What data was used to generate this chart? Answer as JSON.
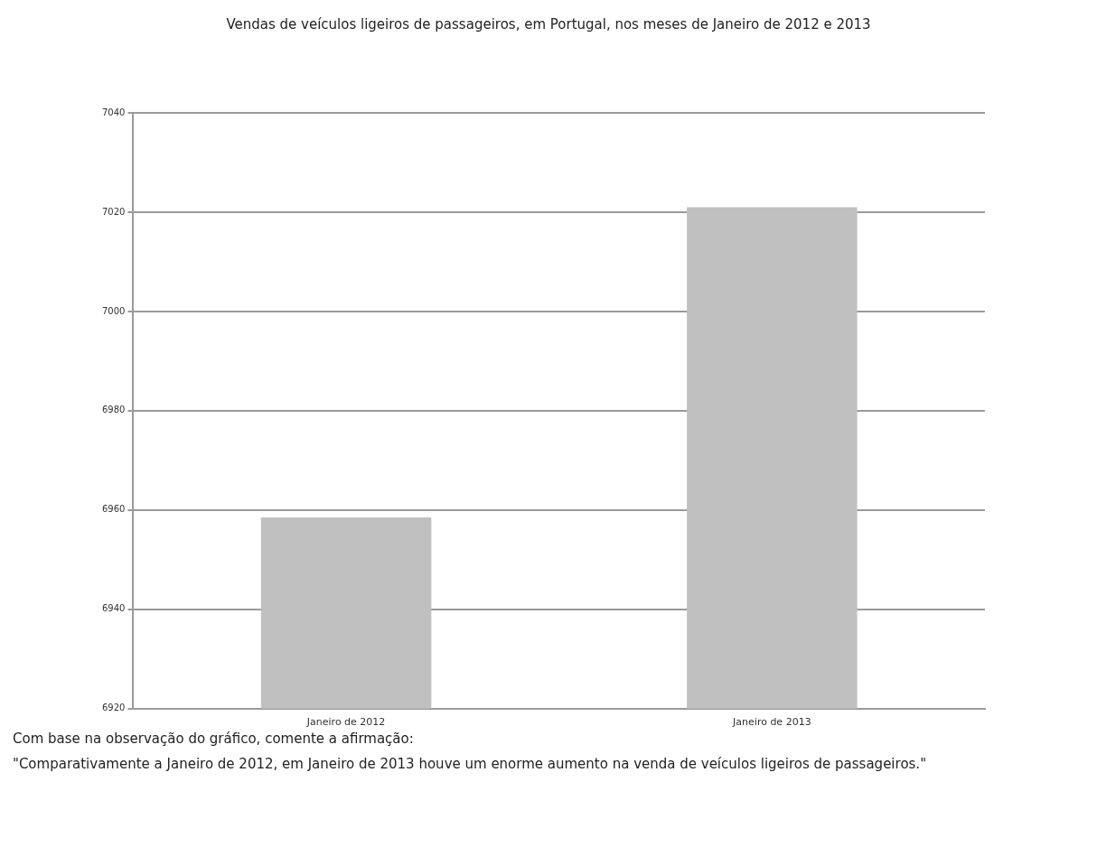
{
  "chart_data": {
    "type": "bar",
    "title": "Vendas de veículos ligeiros de passageiros, em Portugal, nos meses de Janeiro de 2012 e 2013",
    "categories": [
      "Janeiro de 2012",
      "Janeiro de 2013"
    ],
    "values": [
      6958.5,
      7021
    ],
    "color": "#c0c0c0",
    "ylim": [
      6920,
      7040
    ],
    "yticks": [
      6920,
      6940,
      6960,
      6980,
      7000,
      7020,
      7040
    ],
    "grid": "y",
    "annotations": [
      "Com base na observação do gráfico, comente a afirmação:",
      "\"Comparativamente a Janeiro de 2012, em Janeiro de 2013 houve um enorme aumento na venda de veículos ligeiros de passageiros.\""
    ]
  }
}
